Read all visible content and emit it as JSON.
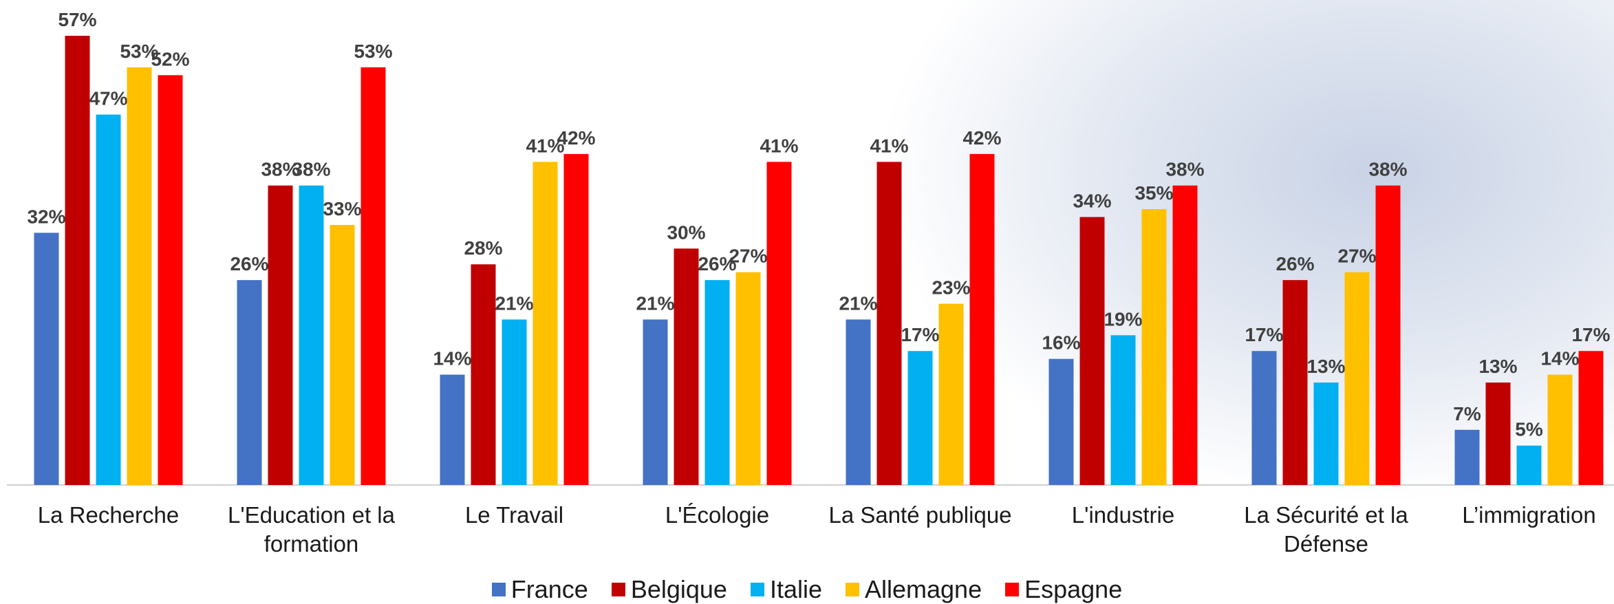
{
  "chart_data": {
    "type": "bar",
    "categories": [
      "La Recherche",
      "L'Education et la formation",
      "Le Travail",
      "L'Écologie",
      "La Santé publique",
      "L'industrie",
      "La Sécurité et la Défense",
      "L’immigration"
    ],
    "series": [
      {
        "name": "France",
        "color": "#4472c4",
        "values": [
          32,
          26,
          14,
          21,
          21,
          16,
          17,
          7
        ],
        "value_labels": [
          "32%",
          "26%",
          "14%",
          "21%",
          "21%",
          "16%",
          "17%",
          "7%"
        ]
      },
      {
        "name": "Belgique",
        "color": "#c00000",
        "values": [
          57,
          38,
          28,
          30,
          41,
          34,
          26,
          13
        ],
        "value_labels": [
          "57%",
          "38%",
          "28%",
          "30%",
          "41%",
          "34%",
          "26%",
          "13%"
        ]
      },
      {
        "name": "Italie",
        "color": "#00b0f0",
        "values": [
          47,
          38,
          21,
          26,
          17,
          19,
          13,
          5
        ],
        "value_labels": [
          "47%",
          "38%",
          "21%",
          "26%",
          "17%",
          "19%",
          "13%",
          "5%"
        ]
      },
      {
        "name": "Allemagne",
        "color": "#ffc000",
        "values": [
          53,
          33,
          41,
          27,
          23,
          35,
          27,
          14
        ],
        "value_labels": [
          "53%",
          "33%",
          "41%",
          "27%",
          "23%",
          "35%",
          "27%",
          "14%"
        ]
      },
      {
        "name": "Espagne",
        "color": "#ff0000",
        "values": [
          52,
          53,
          42,
          41,
          42,
          38,
          38,
          17
        ],
        "value_labels": [
          "52%",
          "53%",
          "42%",
          "41%",
          "42%",
          "38%",
          "38%",
          "17%"
        ]
      }
    ],
    "legend": "bottom"
  }
}
